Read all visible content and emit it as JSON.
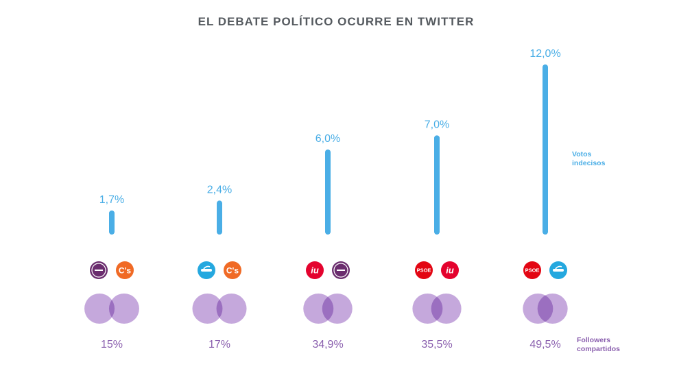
{
  "chart_data": {
    "type": "bar",
    "title": "EL DEBATE POLÍTICO OCURRE EN TWITTER",
    "categories": [
      "Podemos + C's",
      "PP + C's",
      "IU + Podemos",
      "PSOE + IU",
      "PSOE + PP"
    ],
    "series": [
      {
        "name": "Votos indecisos",
        "values": [
          1.7,
          2.4,
          6.0,
          7.0,
          12.0
        ],
        "labels": [
          "1,7%",
          "2,4%",
          "6,0%",
          "7,0%",
          "12,0%"
        ],
        "color": "#4aaee6"
      },
      {
        "name": "Followers compartidos",
        "values": [
          15,
          17,
          34.9,
          35.5,
          49.5
        ],
        "labels": [
          "15%",
          "17%",
          "34,9%",
          "35,5%",
          "49,5%"
        ],
        "color": "#8a5fae"
      }
    ],
    "ylim": [
      0,
      12
    ],
    "legend": {
      "votos": [
        "Votos",
        "indecisos"
      ],
      "followers": [
        "Followers",
        "compartidos"
      ]
    },
    "party_logos": [
      [
        {
          "party": "podemos"
        },
        {
          "party": "cs",
          "text": "C's"
        }
      ],
      [
        {
          "party": "pp"
        },
        {
          "party": "cs",
          "text": "C's"
        }
      ],
      [
        {
          "party": "iu",
          "text": "iu"
        },
        {
          "party": "podemos"
        }
      ],
      [
        {
          "party": "psoe",
          "text": "PSOE"
        },
        {
          "party": "iu",
          "text": "iu"
        }
      ],
      [
        {
          "party": "psoe",
          "text": "PSOE"
        },
        {
          "party": "pp"
        }
      ]
    ],
    "colors": {
      "bar": "#4aaee6",
      "venn": "#c5a8dc",
      "venn_overlap": "#9b6fc0",
      "podemos": "#6b2d6e",
      "cs": "#f06a25",
      "pp": "#25a8df",
      "iu": "#e4032e",
      "psoe": "#e30613"
    }
  }
}
